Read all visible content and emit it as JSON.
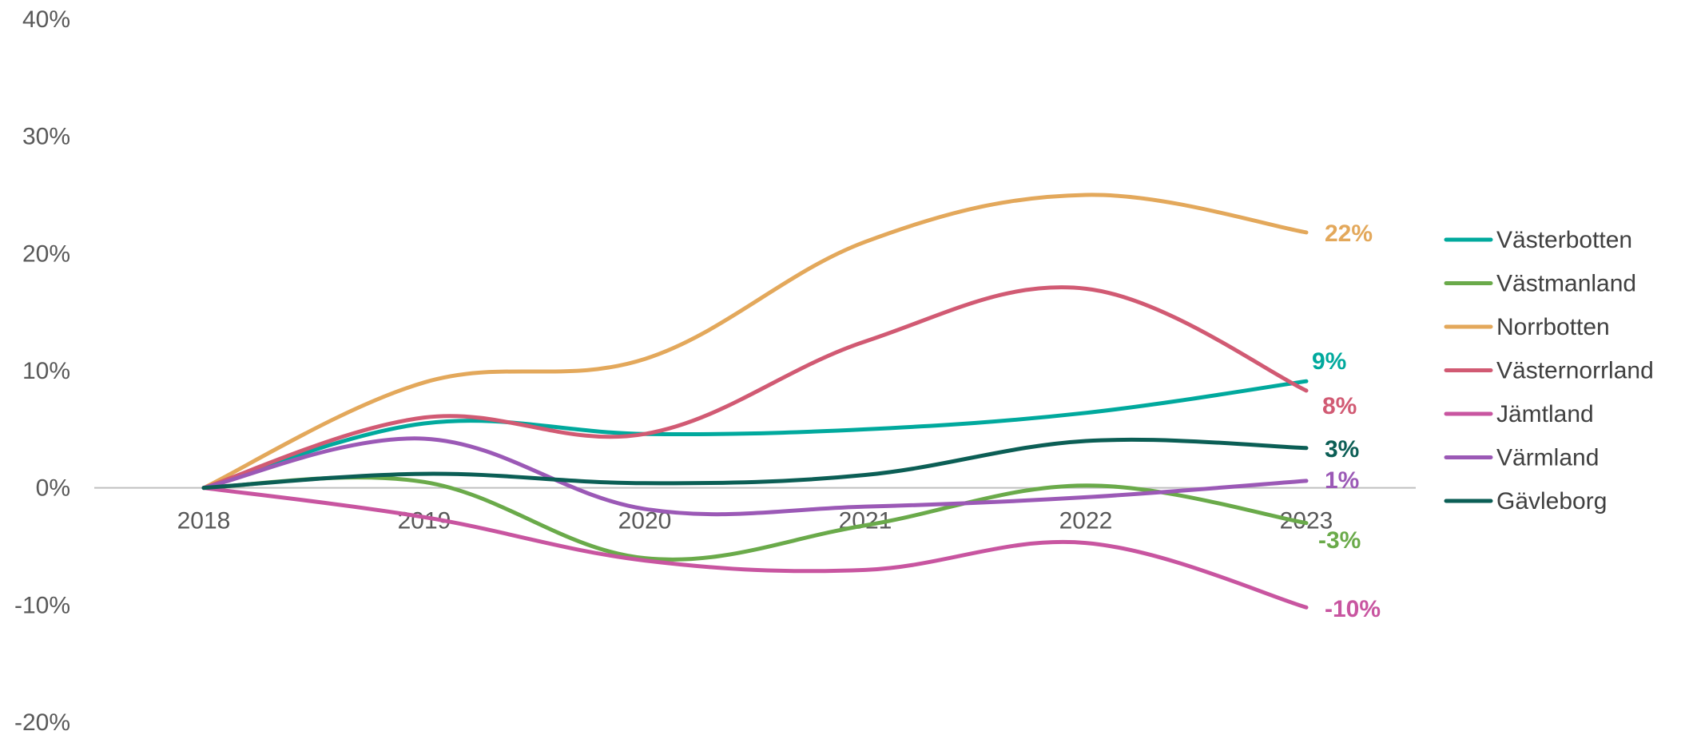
{
  "chart_data": {
    "type": "line",
    "title": "",
    "xlabel": "",
    "ylabel": "",
    "x": [
      "2018",
      "2019",
      "2020",
      "2021",
      "2022",
      "2023"
    ],
    "ylim": [
      -20,
      40
    ],
    "yticks": [
      40,
      30,
      20,
      10,
      0,
      -10,
      -20
    ],
    "ytick_labels": [
      "40%",
      "30%",
      "20%",
      "10%",
      "0%",
      "-10%",
      "-20%"
    ],
    "grid": false,
    "legend_position": "right",
    "series": [
      {
        "name": "Västerbotten",
        "color": "#00A99D",
        "values": [
          0,
          5.5,
          4.6,
          5.0,
          6.4,
          9.1
        ],
        "end_label": "9%"
      },
      {
        "name": "Västmanland",
        "color": "#6AAA4A",
        "values": [
          0,
          0.5,
          -6.0,
          -3.2,
          0.2,
          -3.0
        ],
        "end_label": "-3%"
      },
      {
        "name": "Norrbotten",
        "color": "#E3A85B",
        "values": [
          0,
          9.0,
          11.0,
          21.0,
          25.0,
          21.8
        ],
        "end_label": "22%"
      },
      {
        "name": "Västernorrland",
        "color": "#D15A73",
        "values": [
          0,
          6.0,
          4.6,
          12.5,
          17.0,
          8.3
        ],
        "end_label": "8%"
      },
      {
        "name": "Jämtland",
        "color": "#C855A0",
        "values": [
          0,
          -2.5,
          -6.2,
          -7.0,
          -4.7,
          -10.2
        ],
        "end_label": "-10%"
      },
      {
        "name": "Värmland",
        "color": "#9B59B6",
        "values": [
          0,
          4.2,
          -1.8,
          -1.6,
          -0.8,
          0.6
        ],
        "end_label": "1%"
      },
      {
        "name": "Gävleborg",
        "color": "#0B5E55",
        "values": [
          0,
          1.2,
          0.4,
          1.1,
          4.0,
          3.4
        ],
        "end_label": "3%"
      }
    ]
  }
}
